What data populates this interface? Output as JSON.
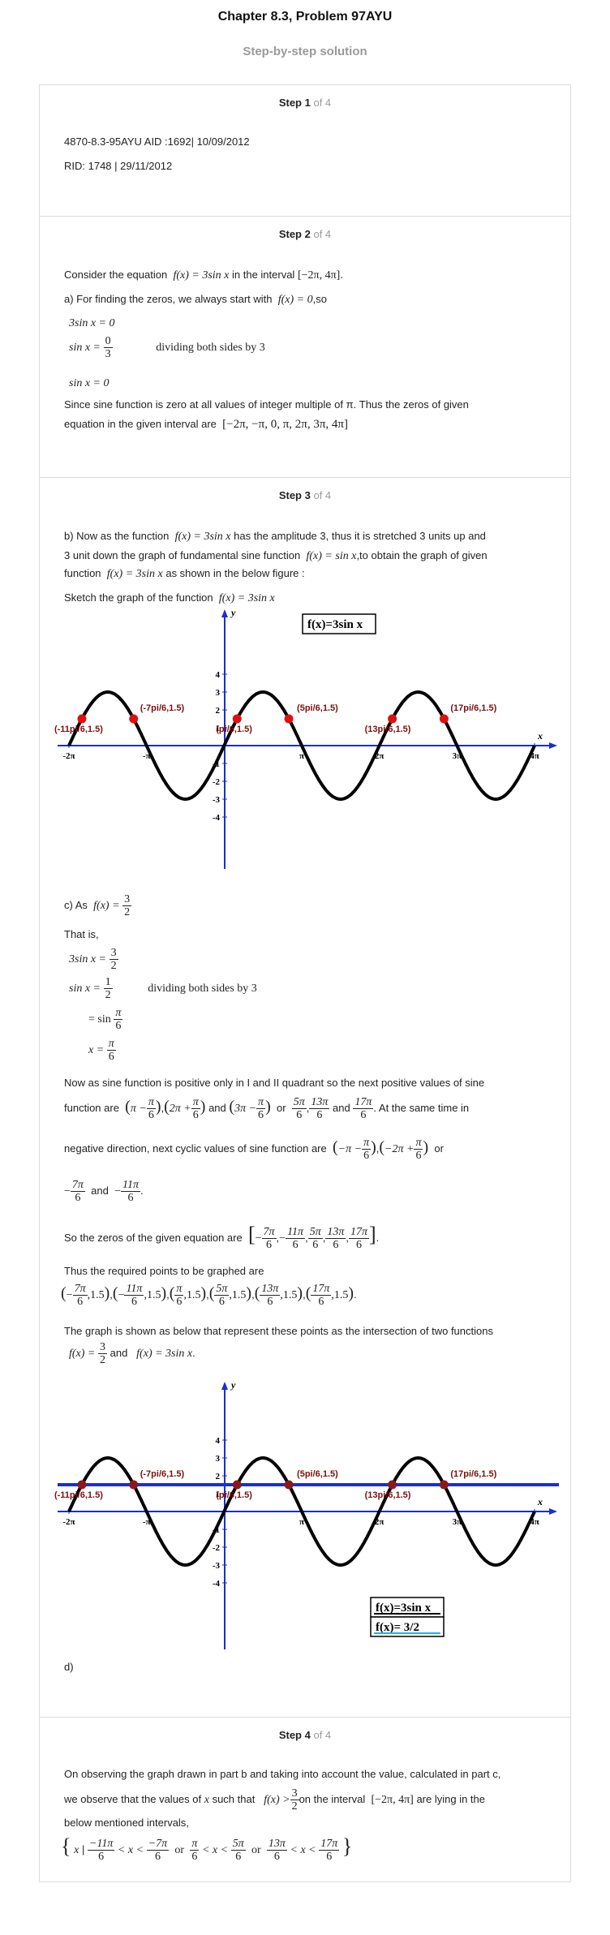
{
  "header": {
    "title": "Chapter 8.3, Problem 97AYU",
    "subtitle": "Step-by-step solution"
  },
  "steps": [
    {
      "label": "Step 1",
      "of": "of 4"
    },
    {
      "label": "Step 2",
      "of": "of 4"
    },
    {
      "label": "Step 3",
      "of": "of 4"
    },
    {
      "label": "Step 4",
      "of": "of 4"
    }
  ],
  "step1": {
    "line1": "4870-8.3-95AYU AID :1692| 10/09/2012",
    "line2": "RID: 1748 | 29/11/2012"
  },
  "step2": {
    "consider_a": "Consider the equation",
    "eq_fx": "f(x) = 3sin x",
    "consider_b": "in the interval",
    "interval": "[−2π, 4π]",
    "a_intro": "a) For finding the zeros, we always start with",
    "a_eq": "f(x) = 0",
    "a_so": ",so",
    "m1": "3sin x = 0",
    "m2_lhs": "sin x =",
    "m2_num": "0",
    "m2_den": "3",
    "m2_note": "dividing both sides by 3",
    "m3": "sin x = 0",
    "since1": "Since sine function is zero at all values of integer multiple of π. Thus the zeros of given",
    "since2": "equation in the given interval are",
    "zeros": "[−2π, −π, 0, π, 2π, 3π, 4π]"
  },
  "step3": {
    "b1": "b) Now as the function",
    "b1_eq": "f(x) = 3sin x",
    "b1_rest": "has the amplitude 3, thus it is stretched 3 units up and",
    "b2": "3 unit down the graph of fundamental sine function",
    "b2_eq": "f(x) = sin x",
    "b2_rest": ",to obtain the graph of given",
    "b3": "function",
    "b3_eq": "f(x) = 3sin x",
    "b3_rest": "as shown in the below figure :",
    "sketch": "Sketch the graph of the function",
    "sketch_eq": "f(x) = 3sin x",
    "c_intro": "c) As",
    "c_eq_lhs": "f(x) =",
    "c_num": "3",
    "c_den": "2",
    "that_is": "That is,",
    "c_m1_lhs": "3sin x =",
    "c_m2_lhs": "sin x =",
    "c_m2_num": "1",
    "c_m2_den": "2",
    "c_m2_note": "dividing both sides by 3",
    "c_m3_lhs": "= sin",
    "c_m3_num": "π",
    "c_m3_den": "6",
    "c_m4_lhs": "x =",
    "p1": "Now as sine function is positive only in I and II quadrant so the next positive values of sine",
    "p2a": "function are",
    "p2_and": "and",
    "p2_or": "or",
    "p2_and2": "and",
    "p2_end": ". At the same time in",
    "p3": "negative direction, next cyclic values of sine function are",
    "p3_or": "or",
    "p4_and": "and",
    "so_zeros": "So the zeros of the given equation are",
    "thus_points": "Thus the required points to be graphed are",
    "graph_shown": "The graph is shown as below that represent these points as the intersection of two functions",
    "and_word": "and",
    "two_eq": "f(x) = 3sin x",
    "d_label": "d)"
  },
  "step4": {
    "s1": "On observing the graph drawn in part b and taking into account the value, calculated in part c,",
    "s2a": "we observe that the values of",
    "s2x": "x",
    "s2b": "such that",
    "s2c": "on the interval",
    "s2d": "are lying in the",
    "s3": "below mentioned intervals,",
    "or1": "or",
    "or2": "or"
  },
  "graph1": {
    "legend": "f(x)=3sin x",
    "x_label": "x",
    "y_label": "y",
    "x_ticks": [
      "-2π",
      "-π",
      "π",
      "2π",
      "3π",
      "4π"
    ],
    "y_ticks": [
      "4",
      "3",
      "2",
      "1",
      "-1",
      "-2",
      "-3",
      "-4"
    ],
    "point_labels": [
      "(-11pi/6,1.5)",
      "(-7pi/6,1.5)",
      "(pi/6,1.5)",
      "(5pi/6,1.5)",
      "(13pi/6,1.5)",
      "(17pi/6,1.5)"
    ],
    "point_x_over_pi": [
      -1.8333,
      -1.1667,
      0.1667,
      0.8333,
      2.1667,
      2.8333
    ],
    "point_y": 1.5,
    "amplitude": 3,
    "x_range_over_pi": [
      -2,
      4
    ],
    "curve_color": "#000000",
    "point_color": "#dd1111",
    "axis_color": "#1a2fd0",
    "label_color": "#7a1010"
  },
  "graph2": {
    "legend1": "f(x)=3sin x",
    "legend2": "f(x)= 3/2",
    "x_label": "x",
    "y_label": "y",
    "x_ticks": [
      "-2π",
      "-π",
      "π",
      "2π",
      "3π",
      "4π"
    ],
    "y_ticks": [
      "4",
      "3",
      "2",
      "1",
      "-1",
      "-2",
      "-3",
      "-4"
    ],
    "point_labels": [
      "(-11pi/6,1.5)",
      "(-7pi/6,1.5)",
      "(pi/6,1.5)",
      "(5pi/6,1.5)",
      "(13pi/6,1.5)",
      "(17pi/6,1.5)"
    ],
    "horizontal_line_y": 1.5,
    "line_color": "#1a2fd0"
  }
}
